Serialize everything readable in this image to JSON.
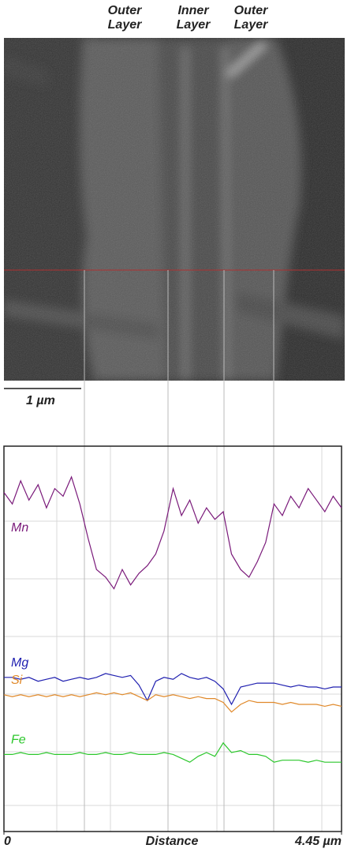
{
  "image": {
    "labels": [
      [
        "Outer",
        "Layer"
      ],
      [
        "Inner",
        "Layer"
      ],
      [
        "Outer",
        "Layer"
      ]
    ],
    "scale_bar": "1 µm"
  },
  "chart_data": {
    "type": "line",
    "xlabel": "Distance",
    "x": [
      0,
      0.11,
      0.22,
      0.33,
      0.45,
      0.56,
      0.67,
      0.78,
      0.89,
      1.0,
      1.11,
      1.22,
      1.34,
      1.45,
      1.56,
      1.67,
      1.78,
      1.89,
      2.0,
      2.11,
      2.23,
      2.34,
      2.45,
      2.56,
      2.67,
      2.78,
      2.89,
      3.0,
      3.12,
      3.23,
      3.34,
      3.45,
      3.56,
      3.67,
      3.78,
      3.89,
      4.01,
      4.12,
      4.23,
      4.34,
      4.45
    ],
    "xlim": [
      0,
      4.45
    ],
    "xticks": [
      0,
      {
        "value": 4.45,
        "label": "4.45 µm"
      }
    ],
    "ylim": [
      0,
      100
    ],
    "series": [
      {
        "name": "Mn",
        "color": "#7a1a7a",
        "values": [
          88,
          85,
          91,
          86,
          90,
          84,
          89,
          87,
          92,
          85,
          76,
          68,
          66,
          63,
          68,
          64,
          67,
          69,
          72,
          78,
          89,
          82,
          86,
          80,
          84,
          81,
          83,
          72,
          68,
          66,
          70,
          75,
          85,
          82,
          87,
          84,
          89,
          86,
          83,
          87,
          84
        ]
      },
      {
        "name": "Mg",
        "color": "#2020b0",
        "values": [
          40,
          40,
          39.5,
          40,
          39,
          39.5,
          40,
          39,
          39.5,
          40,
          39.5,
          40,
          41,
          40.5,
          40,
          40.5,
          38,
          34,
          39,
          40,
          39.5,
          41,
          40,
          39.5,
          40,
          39,
          37,
          33,
          37.5,
          38,
          38.5,
          38.5,
          38.5,
          38,
          37.5,
          38,
          37.5,
          37.5,
          37,
          37.5,
          37.5
        ]
      },
      {
        "name": "Si",
        "color": "#e0892a",
        "values": [
          35.5,
          35,
          35.5,
          35,
          35.5,
          35,
          35.5,
          35,
          35.5,
          35,
          35.5,
          36,
          35.5,
          36,
          35.5,
          36,
          35,
          34,
          35.5,
          35,
          35.5,
          35,
          34.5,
          35,
          34.5,
          34.5,
          33.5,
          31,
          33,
          34,
          33.5,
          33.5,
          33.5,
          33,
          33.5,
          33,
          33,
          33,
          32.5,
          33,
          32.5
        ]
      },
      {
        "name": "Fe",
        "color": "#2cc72c",
        "values": [
          20,
          20,
          20.5,
          20,
          20,
          20.5,
          20,
          20,
          20,
          20.5,
          20,
          20,
          20.5,
          20,
          20,
          20.5,
          20,
          20,
          20,
          20.5,
          20,
          19,
          18,
          19.5,
          20.5,
          19.5,
          23,
          20.5,
          21,
          20,
          20,
          19.5,
          18,
          18.5,
          18.5,
          18.5,
          18,
          18.5,
          18,
          18,
          18
        ]
      }
    ]
  }
}
